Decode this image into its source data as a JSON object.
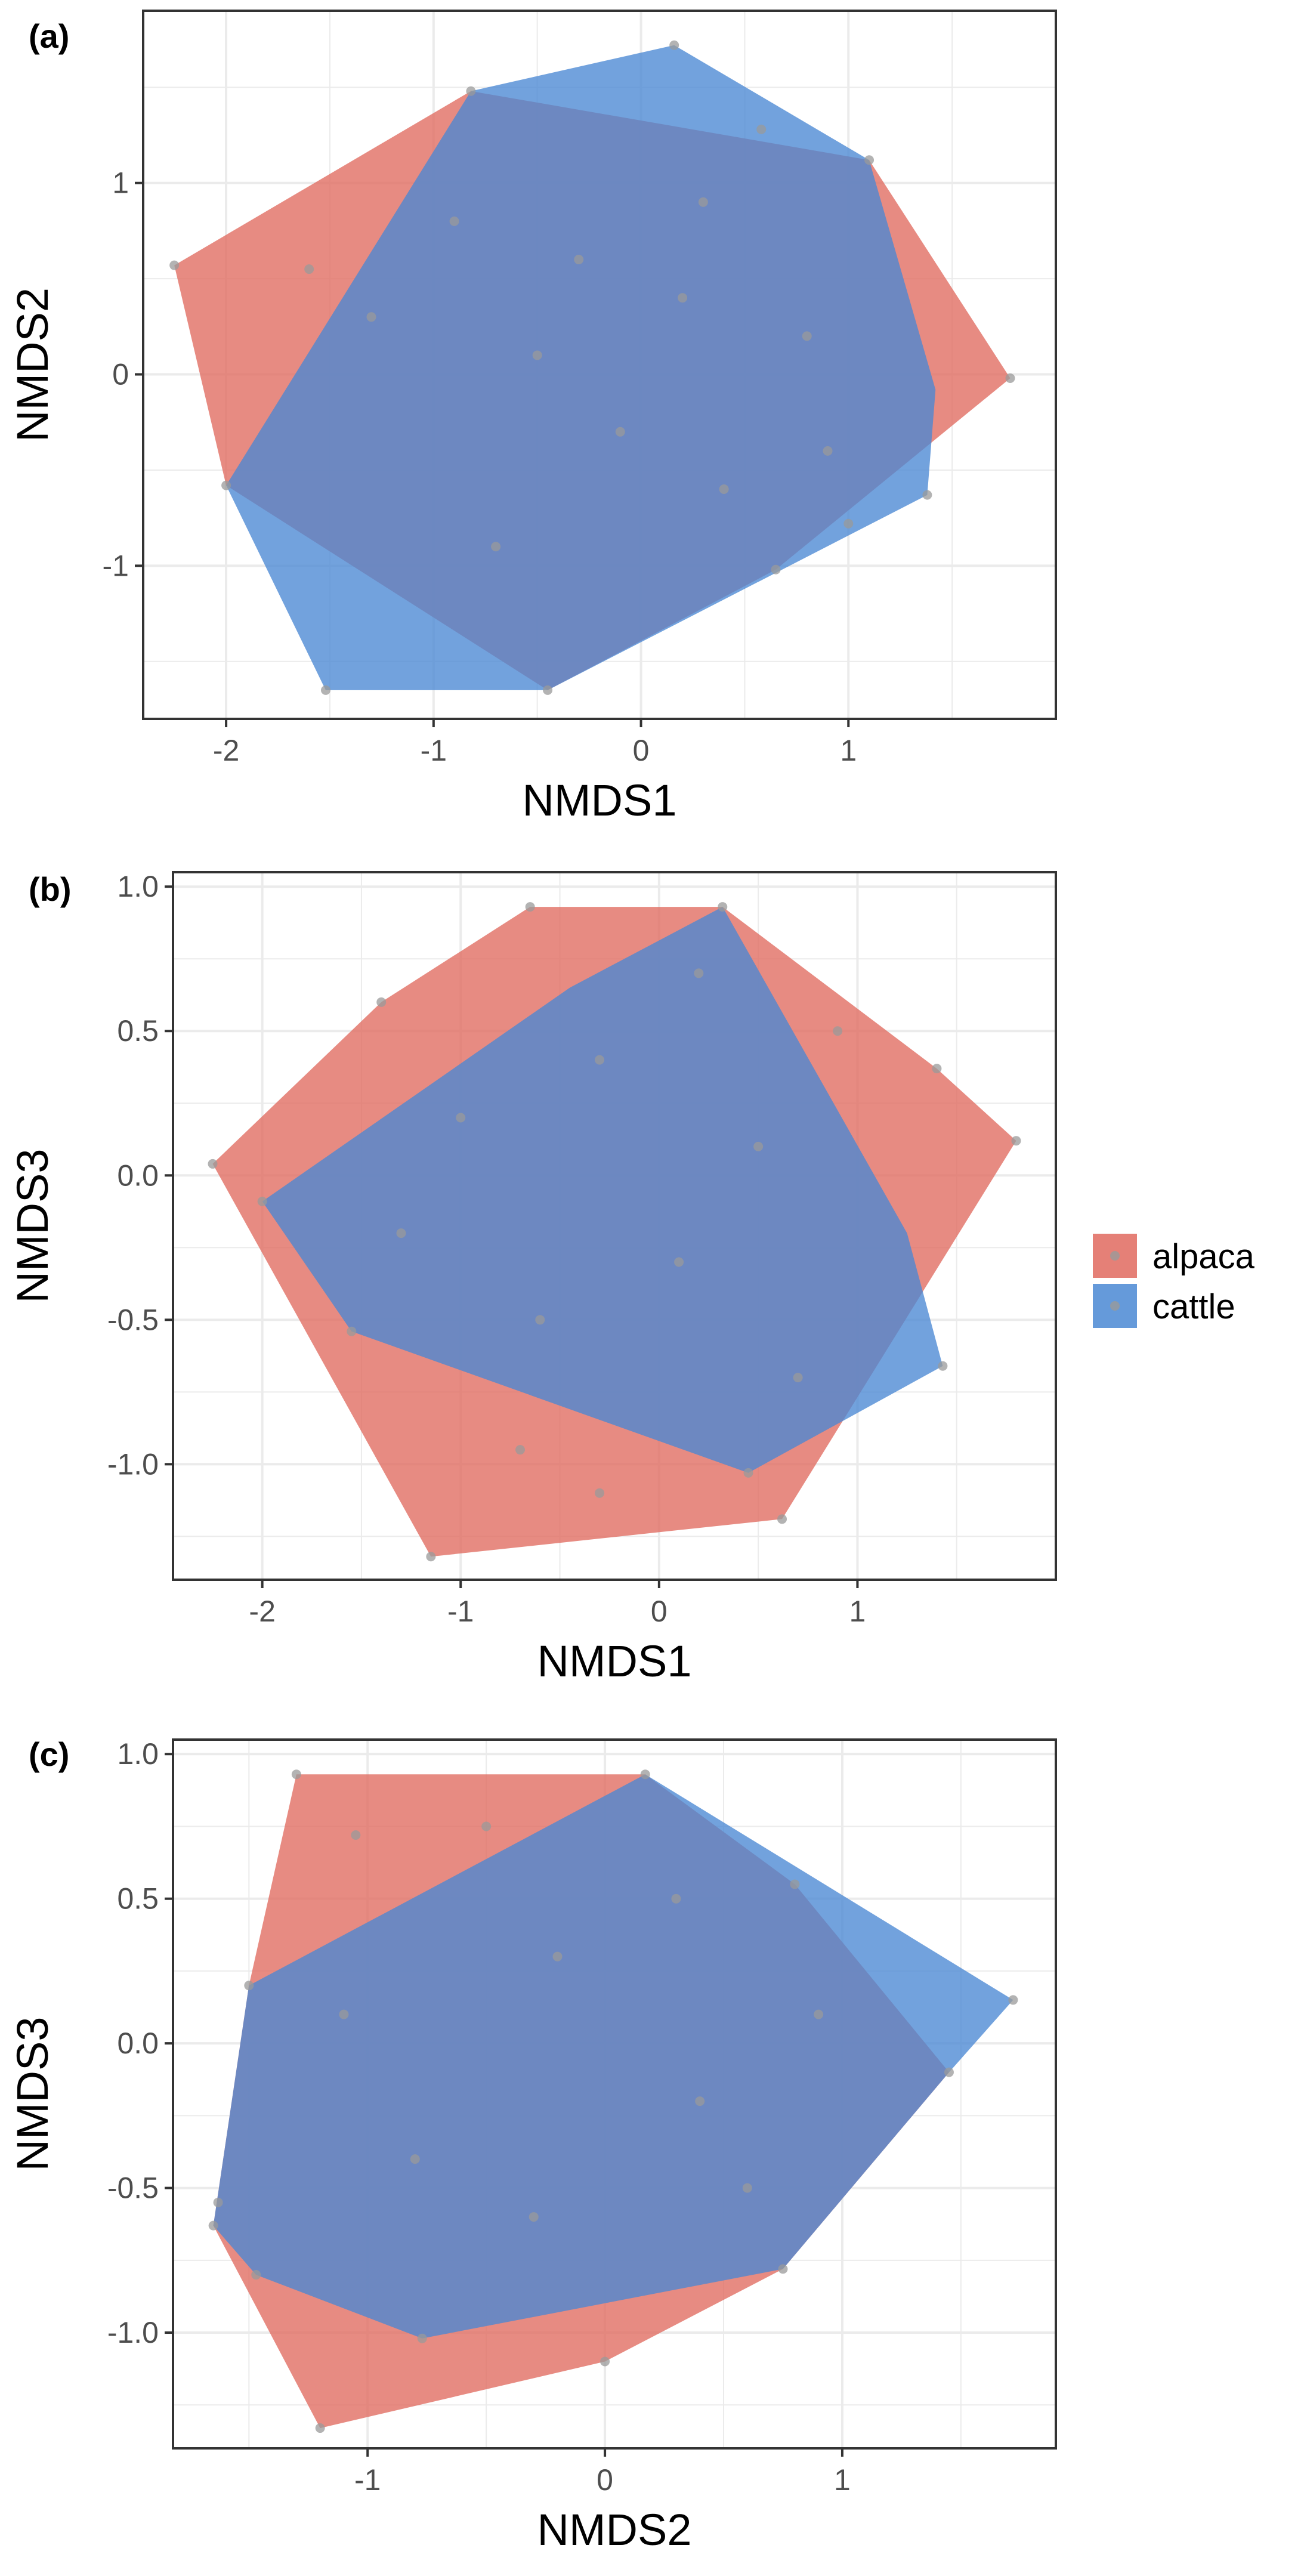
{
  "legend": {
    "entries": [
      {
        "label": "alpaca",
        "color": "#E06A5F"
      },
      {
        "label": "cattle",
        "color": "#4A88D4"
      }
    ]
  },
  "point_color": "#9a9a9a",
  "chart_data": [
    {
      "type": "scatter",
      "panel_label": "(a)",
      "xlabel": "NMDS1",
      "ylabel": "NMDS2",
      "xlim": [
        -2.4,
        2.0
      ],
      "ylim": [
        -1.8,
        1.9
      ],
      "xticks": [
        -2,
        -1,
        0,
        1
      ],
      "xtick_labels": [
        "-2",
        "-1",
        "0",
        "1"
      ],
      "yticks": [
        -1,
        0,
        1
      ],
      "ytick_labels": [
        "-1",
        "0",
        "1"
      ],
      "hulls": [
        {
          "name": "alpaca",
          "points": [
            [
              -2.25,
              0.57
            ],
            [
              -0.82,
              1.48
            ],
            [
              1.1,
              1.12
            ],
            [
              1.78,
              -0.02
            ],
            [
              0.65,
              -1.02
            ],
            [
              -0.45,
              -1.65
            ],
            [
              -2.0,
              -0.58
            ]
          ]
        },
        {
          "name": "cattle",
          "points": [
            [
              -1.52,
              -1.65
            ],
            [
              -2.0,
              -0.58
            ],
            [
              -0.82,
              1.48
            ],
            [
              0.16,
              1.72
            ],
            [
              1.1,
              1.12
            ],
            [
              1.42,
              -0.08
            ],
            [
              1.38,
              -0.63
            ],
            [
              -0.45,
              -1.65
            ]
          ]
        }
      ],
      "points": [
        [
          -2.25,
          0.57
        ],
        [
          -1.6,
          0.55
        ],
        [
          -0.82,
          1.48
        ],
        [
          0.16,
          1.72
        ],
        [
          0.58,
          1.28
        ],
        [
          1.1,
          1.12
        ],
        [
          1.78,
          -0.02
        ],
        [
          1.38,
          -0.63
        ],
        [
          1.0,
          -0.78
        ],
        [
          0.65,
          -1.02
        ],
        [
          -0.45,
          -1.65
        ],
        [
          -1.52,
          -1.65
        ],
        [
          -2.0,
          -0.58
        ],
        [
          -1.3,
          0.3
        ],
        [
          -0.9,
          0.8
        ],
        [
          -0.5,
          0.1
        ],
        [
          0.2,
          0.4
        ],
        [
          -0.1,
          -0.3
        ],
        [
          0.4,
          -0.6
        ],
        [
          0.8,
          0.2
        ],
        [
          -0.7,
          -0.9
        ],
        [
          0.3,
          0.9
        ],
        [
          -0.3,
          0.6
        ],
        [
          0.9,
          -0.4
        ]
      ]
    },
    {
      "type": "scatter",
      "panel_label": "(b)",
      "xlabel": "NMDS1",
      "ylabel": "NMDS3",
      "xlim": [
        -2.45,
        2.0
      ],
      "ylim": [
        -1.4,
        1.05
      ],
      "xticks": [
        -2,
        -1,
        0,
        1
      ],
      "xtick_labels": [
        "-2",
        "-1",
        "0",
        "1"
      ],
      "yticks": [
        -1.0,
        -0.5,
        0.0,
        0.5,
        1.0
      ],
      "ytick_labels": [
        "-1.0",
        "-0.5",
        "0.0",
        "0.5",
        "1.0"
      ],
      "hulls": [
        {
          "name": "alpaca",
          "points": [
            [
              -2.25,
              0.04
            ],
            [
              -1.4,
              0.6
            ],
            [
              -0.65,
              0.93
            ],
            [
              0.32,
              0.93
            ],
            [
              1.4,
              0.37
            ],
            [
              1.8,
              0.12
            ],
            [
              0.62,
              -1.19
            ],
            [
              -1.15,
              -1.32
            ]
          ]
        },
        {
          "name": "cattle",
          "points": [
            [
              -2.0,
              -0.09
            ],
            [
              -0.45,
              0.65
            ],
            [
              0.32,
              0.93
            ],
            [
              1.25,
              -0.2
            ],
            [
              1.43,
              -0.66
            ],
            [
              0.45,
              -1.03
            ],
            [
              -1.55,
              -0.54
            ]
          ]
        }
      ],
      "points": [
        [
          -2.25,
          0.04
        ],
        [
          -2.0,
          -0.09
        ],
        [
          -1.4,
          0.6
        ],
        [
          -0.65,
          0.93
        ],
        [
          0.32,
          0.93
        ],
        [
          1.4,
          0.37
        ],
        [
          1.8,
          0.12
        ],
        [
          1.43,
          -0.66
        ],
        [
          0.62,
          -1.19
        ],
        [
          0.45,
          -1.03
        ],
        [
          -1.15,
          -1.32
        ],
        [
          -1.55,
          -0.54
        ],
        [
          -0.7,
          -0.95
        ],
        [
          -0.3,
          -1.1
        ],
        [
          0.9,
          0.5
        ],
        [
          -1.0,
          0.2
        ],
        [
          -0.3,
          0.4
        ],
        [
          0.1,
          -0.3
        ],
        [
          0.5,
          0.1
        ],
        [
          -0.6,
          -0.5
        ],
        [
          0.7,
          -0.7
        ],
        [
          0.2,
          0.7
        ],
        [
          -1.3,
          -0.2
        ]
      ]
    },
    {
      "type": "scatter",
      "panel_label": "(c)",
      "xlabel": "NMDS2",
      "ylabel": "NMDS3",
      "xlim": [
        -1.82,
        1.9
      ],
      "ylim": [
        -1.4,
        1.05
      ],
      "xticks": [
        -1,
        0,
        1
      ],
      "xtick_labels": [
        "-1",
        "0",
        "1"
      ],
      "yticks": [
        -1.0,
        -0.5,
        0.0,
        0.5,
        1.0
      ],
      "ytick_labels": [
        "-1.0",
        "-0.5",
        "0.0",
        "0.5",
        "1.0"
      ],
      "hulls": [
        {
          "name": "alpaca",
          "points": [
            [
              -1.3,
              0.93
            ],
            [
              0.17,
              0.93
            ],
            [
              0.8,
              0.55
            ],
            [
              1.45,
              -0.1
            ],
            [
              0.75,
              -0.78
            ],
            [
              0.0,
              -1.1
            ],
            [
              -1.2,
              -1.33
            ],
            [
              -1.65,
              -0.63
            ],
            [
              -1.5,
              0.2
            ]
          ]
        },
        {
          "name": "cattle",
          "points": [
            [
              -1.65,
              -0.63
            ],
            [
              -1.5,
              0.2
            ],
            [
              0.17,
              0.93
            ],
            [
              1.72,
              0.15
            ],
            [
              1.45,
              -0.1
            ],
            [
              0.75,
              -0.78
            ],
            [
              -0.77,
              -1.02
            ],
            [
              -1.47,
              -0.8
            ]
          ]
        }
      ],
      "points": [
        [
          -1.3,
          0.93
        ],
        [
          0.17,
          0.93
        ],
        [
          0.8,
          0.55
        ],
        [
          1.72,
          0.15
        ],
        [
          1.45,
          -0.1
        ],
        [
          0.75,
          -0.78
        ],
        [
          0.0,
          -1.1
        ],
        [
          -1.2,
          -1.33
        ],
        [
          -1.65,
          -0.63
        ],
        [
          -1.63,
          -0.55
        ],
        [
          -1.5,
          0.2
        ],
        [
          -0.77,
          -1.02
        ],
        [
          -1.47,
          -0.8
        ],
        [
          -1.05,
          0.72
        ],
        [
          -0.5,
          0.75
        ],
        [
          -0.2,
          0.3
        ],
        [
          0.4,
          -0.2
        ],
        [
          -0.8,
          -0.4
        ],
        [
          0.3,
          0.5
        ],
        [
          0.9,
          0.1
        ],
        [
          -0.3,
          -0.6
        ],
        [
          -1.1,
          0.1
        ],
        [
          0.6,
          -0.5
        ]
      ]
    }
  ]
}
